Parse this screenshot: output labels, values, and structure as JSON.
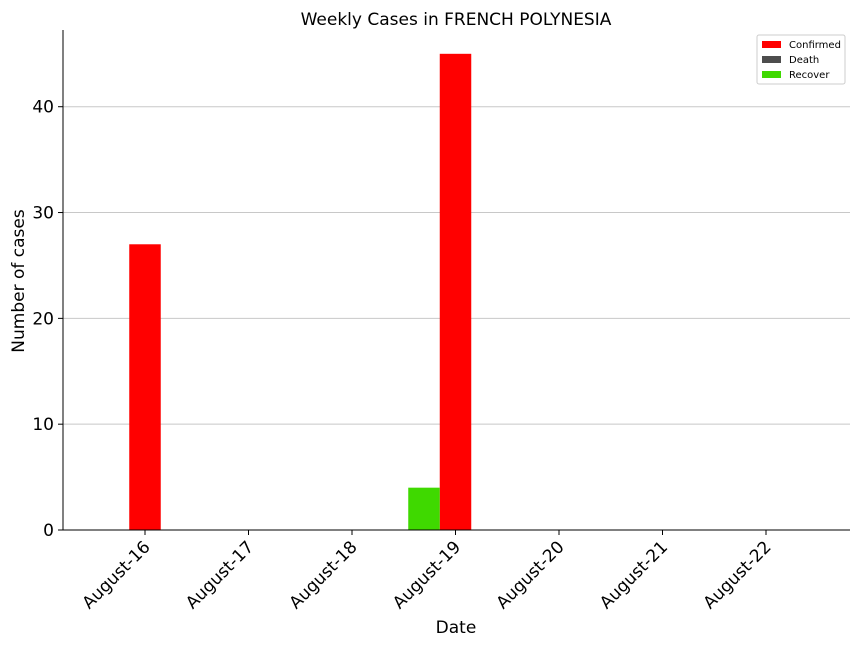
{
  "chart_data": {
    "type": "bar",
    "title": "Weekly Cases in FRENCH POLYNESIA",
    "xlabel": "Date",
    "ylabel": "Number of cases",
    "categories": [
      "August-16",
      "August-17",
      "August-18",
      "August-19",
      "August-20",
      "August-21",
      "August-22"
    ],
    "series": [
      {
        "name": "Confirmed",
        "color": "#ff0000",
        "values": [
          27,
          0,
          0,
          45,
          0,
          0,
          0
        ]
      },
      {
        "name": "Death",
        "color": "#4d4d4d",
        "values": [
          0,
          0,
          0,
          0,
          0,
          0,
          0
        ]
      },
      {
        "name": "Recover",
        "color": "#3fd900",
        "values": [
          0,
          0,
          0,
          4,
          0,
          0,
          0
        ]
      }
    ],
    "ylim": [
      0,
      47.25
    ],
    "yticks": [
      0,
      10,
      20,
      30,
      40
    ],
    "grid": "horizontal",
    "legend_position": "top-right"
  }
}
